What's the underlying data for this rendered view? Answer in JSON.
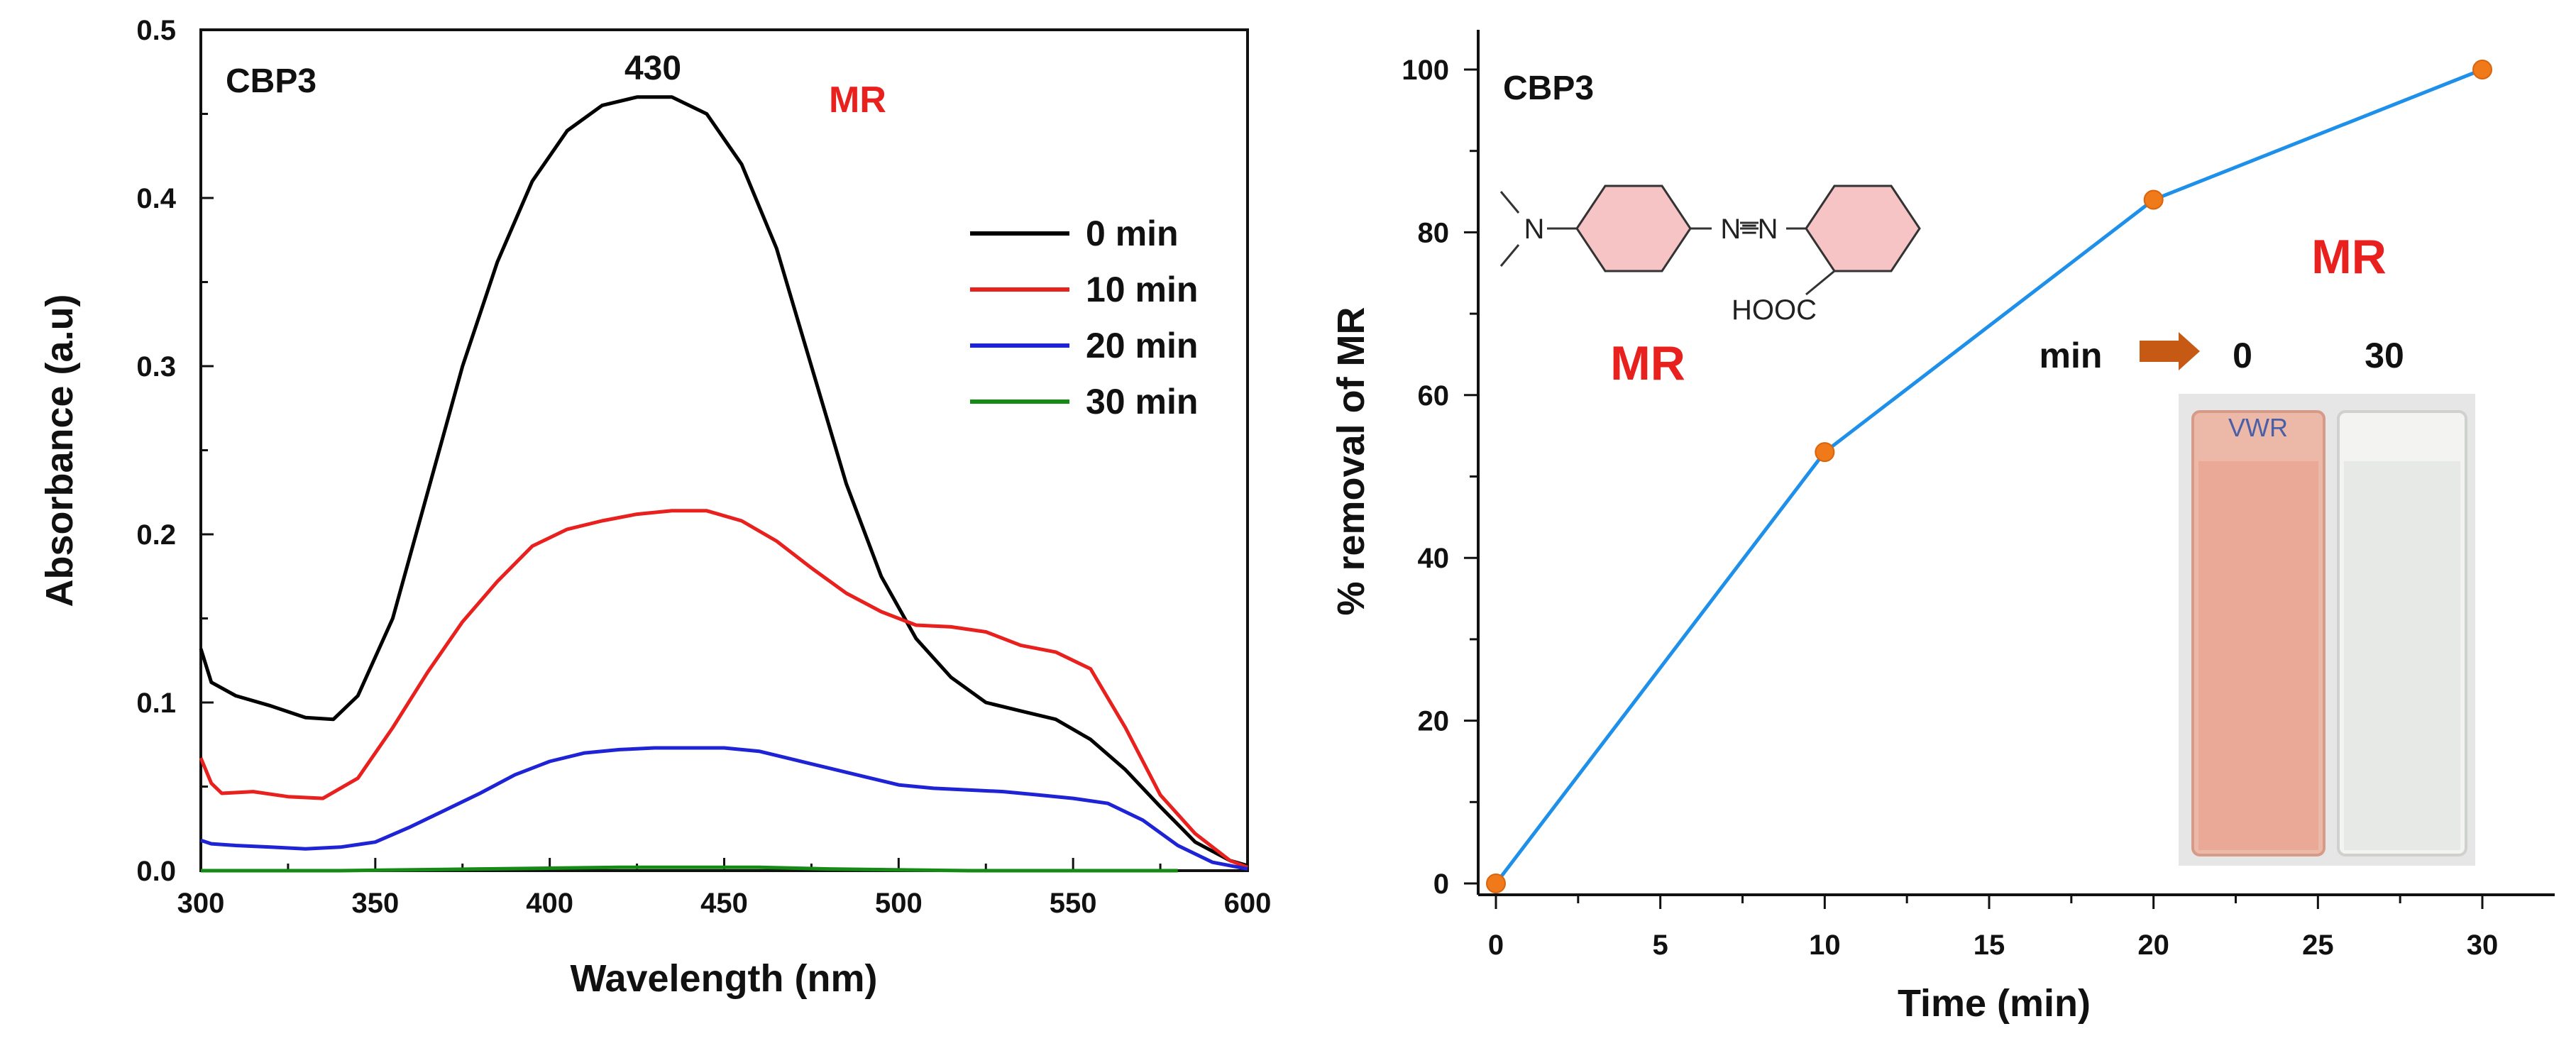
{
  "chart_data": [
    {
      "type": "line",
      "tag": "CBP3",
      "annotation": "MR",
      "peak_label": "430",
      "xlabel": "Wavelength (nm)",
      "ylabel": "Absorbance (a.u)",
      "xlim": [
        300,
        600
      ],
      "ylim": [
        0.0,
        0.5
      ],
      "x_ticks": [
        "300",
        "350",
        "400",
        "450",
        "500",
        "550",
        "600"
      ],
      "y_ticks": [
        "0.0",
        "0.1",
        "0.2",
        "0.3",
        "0.4",
        "0.5"
      ],
      "legend": [
        "0 min",
        "10 min",
        "20 min",
        "30 min"
      ],
      "series": [
        {
          "name": "0 min",
          "color": "#000000",
          "x": [
            300,
            303,
            310,
            320,
            330,
            338,
            345,
            355,
            365,
            375,
            385,
            395,
            405,
            415,
            425,
            435,
            445,
            455,
            465,
            475,
            485,
            495,
            505,
            515,
            525,
            535,
            545,
            555,
            565,
            575,
            585,
            595,
            600
          ],
          "y": [
            0.132,
            0.112,
            0.104,
            0.098,
            0.091,
            0.09,
            0.104,
            0.15,
            0.225,
            0.3,
            0.362,
            0.41,
            0.44,
            0.455,
            0.46,
            0.46,
            0.45,
            0.42,
            0.37,
            0.3,
            0.23,
            0.175,
            0.138,
            0.115,
            0.1,
            0.095,
            0.09,
            0.078,
            0.06,
            0.038,
            0.017,
            0.006,
            0.003
          ]
        },
        {
          "name": "10 min",
          "color": "#e8201e",
          "x": [
            300,
            303,
            306,
            315,
            325,
            335,
            345,
            355,
            365,
            375,
            385,
            395,
            405,
            415,
            425,
            435,
            445,
            455,
            465,
            475,
            485,
            495,
            505,
            515,
            525,
            535,
            545,
            555,
            565,
            575,
            585,
            595,
            600
          ],
          "y": [
            0.067,
            0.052,
            0.046,
            0.047,
            0.044,
            0.043,
            0.055,
            0.085,
            0.118,
            0.148,
            0.172,
            0.193,
            0.203,
            0.208,
            0.212,
            0.214,
            0.214,
            0.208,
            0.196,
            0.18,
            0.165,
            0.154,
            0.146,
            0.145,
            0.142,
            0.134,
            0.13,
            0.12,
            0.085,
            0.045,
            0.022,
            0.006,
            0.002
          ]
        },
        {
          "name": "20 min",
          "color": "#1f23d6",
          "x": [
            300,
            303,
            310,
            320,
            330,
            340,
            350,
            360,
            370,
            380,
            390,
            400,
            410,
            420,
            430,
            440,
            450,
            460,
            470,
            480,
            490,
            500,
            510,
            520,
            530,
            540,
            550,
            560,
            570,
            580,
            590,
            600
          ],
          "y": [
            0.018,
            0.016,
            0.015,
            0.014,
            0.013,
            0.014,
            0.017,
            0.026,
            0.036,
            0.046,
            0.057,
            0.065,
            0.07,
            0.072,
            0.073,
            0.073,
            0.073,
            0.071,
            0.066,
            0.061,
            0.056,
            0.051,
            0.049,
            0.048,
            0.047,
            0.045,
            0.043,
            0.04,
            0.03,
            0.015,
            0.005,
            0.001
          ]
        },
        {
          "name": "30 min",
          "color": "#158a15",
          "x": [
            300,
            340,
            380,
            420,
            440,
            460,
            480,
            520,
            560,
            580
          ],
          "y": [
            0.0,
            0.0,
            0.001,
            0.002,
            0.002,
            0.002,
            0.001,
            0.0,
            0.0,
            0.0
          ]
        }
      ]
    },
    {
      "type": "line",
      "tag": "CBP3",
      "annotation": "MR",
      "xlabel": "Time (min)",
      "ylabel": "% removal of MR",
      "xlim": [
        0,
        32
      ],
      "ylim": [
        0,
        105
      ],
      "x_ticks": [
        "0",
        "5",
        "10",
        "15",
        "20",
        "25",
        "30"
      ],
      "y_ticks": [
        "0",
        "20",
        "40",
        "60",
        "80",
        "100"
      ],
      "series": [
        {
          "name": "% removal of MR",
          "color": "#1e90ea",
          "marker_color": "#f07a1a",
          "x": [
            0,
            10,
            20,
            30
          ],
          "y": [
            0,
            53,
            84,
            100
          ]
        }
      ],
      "inset": {
        "structure_label": "MR",
        "structure_atoms": {
          "nitrogen": "N",
          "azo": "N=N",
          "acid": "HOOC"
        },
        "photo_prefix": "min",
        "photo_times": [
          "0",
          "30"
        ],
        "cuvette_brand": "VWR"
      }
    }
  ]
}
